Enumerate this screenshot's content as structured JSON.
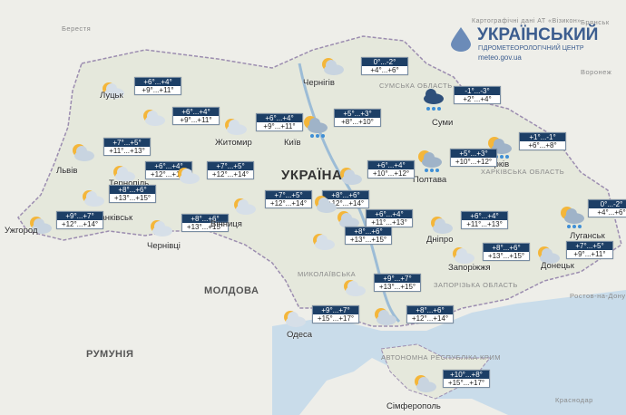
{
  "header": {
    "credit": "Картографічні дані АТ «Візикон»",
    "title": "УКРАЇНСЬКИЙ",
    "subtitle": "ГІДРОМЕТЕОРОЛОГІЧНИЙ ЦЕНТР",
    "url": "meteo.gov.ua"
  },
  "labels": [
    "Берестя",
    "Брянськ",
    "Воронеж",
    "Ростов-на-Дону",
    "Краснодар",
    "РУМУНІЯ",
    "МОЛДОВА",
    "УКРАЇНА",
    "СУМСЬКА ОБЛАСТЬ",
    "ХАРКІВСЬКА ОБЛАСТЬ",
    "ЗАПОРІЗЬКА ОБЛАСТЬ",
    "МИКОЛАЇВСЬКА",
    "АВТОНОМНА РЕСПУБЛІКА КРИМ"
  ],
  "forecasts": [
    {
      "city": null,
      "night": "+6°...+4°",
      "day": "+9°...+11°",
      "icon": "cloud-sun"
    },
    {
      "city": "Луцьк",
      "night": "+6°...+4°",
      "day": "+9°...+11°",
      "icon": "cloud-sun"
    },
    {
      "city": "Житомир",
      "night": "+6°...+4°",
      "day": "+9°...+11°",
      "icon": "cloud-sun"
    },
    {
      "city": "Київ",
      "night": "+5°...+3°",
      "day": "+8°...+10°",
      "icon": "sun-rain"
    },
    {
      "city": "Чернігів",
      "night": "0°...-2°",
      "day": "+4°...+6°",
      "icon": "sun-cloud"
    },
    {
      "city": "Суми",
      "night": "-1°...-3°",
      "day": "+2°...+4°",
      "icon": "rain"
    },
    {
      "city": "Харків",
      "night": "+1°...-1°",
      "day": "+6°...+8°",
      "icon": "sun-rain"
    },
    {
      "city": "Полтава",
      "night": "+5°...+3°",
      "day": "+10°...+12°",
      "icon": "sun-rain"
    },
    {
      "city": "Луганськ",
      "night": "0°...-2°",
      "day": "+4°...+6°",
      "icon": "sun-rain"
    },
    {
      "city": "Львів",
      "night": "+7°...+5°",
      "day": "+11°...+13°",
      "icon": "sun-cloud"
    },
    {
      "city": "Тернопіль",
      "night": "+6°...+4°",
      "day": "+12°...+14°",
      "icon": "cloud-sun"
    },
    {
      "city": null,
      "night": "+7°...+5°",
      "day": "+12°...+14°",
      "icon": "cloud-sun"
    },
    {
      "city": "Франківськ",
      "night": "+8°...+6°",
      "day": "+13°...+15°",
      "icon": "cloud-sun"
    },
    {
      "city": "Ужгород",
      "night": "+9°...+7°",
      "day": "+12°...+14°",
      "icon": "sun-cloud"
    },
    {
      "city": "Чернівці",
      "night": "+8°...+6°",
      "day": "+13°...+15°",
      "icon": "cloud-sun"
    },
    {
      "city": "Вінниця",
      "night": "+7°...+5°",
      "day": "+12°...+14°",
      "icon": "cloud-sun"
    },
    {
      "city": null,
      "night": "+6°...+4°",
      "day": "+10°...+12°",
      "icon": "sun-cloud"
    },
    {
      "city": null,
      "night": "+8°...+6°",
      "day": "+12°...+14°",
      "icon": "sun-cloud"
    },
    {
      "city": "Дніпро",
      "night": "+6°...+4°",
      "day": "+11°...+13°",
      "icon": "sun-cloud"
    },
    {
      "city": null,
      "night": "+6°...+4°",
      "day": "+11°...+13°",
      "icon": "sun-cloud"
    },
    {
      "city": null,
      "night": "+8°...+6°",
      "day": "+13°...+15°",
      "icon": "cloud-sun"
    },
    {
      "city": "Запоріжжя",
      "night": "+8°...+6°",
      "day": "+13°...+15°",
      "icon": "cloud-sun"
    },
    {
      "city": "Донецьк",
      "night": "+7°...+5°",
      "day": "+9°...+11°",
      "icon": "sun-cloud"
    },
    {
      "city": null,
      "night": "+9°...+7°",
      "day": "+13°...+15°",
      "icon": "cloud-sun"
    },
    {
      "city": "Одеса",
      "night": "+9°...+7°",
      "day": "+15°...+17°",
      "icon": "cloud-sun"
    },
    {
      "city": null,
      "night": "+8°...+6°",
      "day": "+12°...+14°",
      "icon": "sun-cloud"
    },
    {
      "city": "Сімферополь",
      "night": "+10°...+8°",
      "day": "+15°...+17°",
      "icon": "sun-cloud"
    }
  ]
}
